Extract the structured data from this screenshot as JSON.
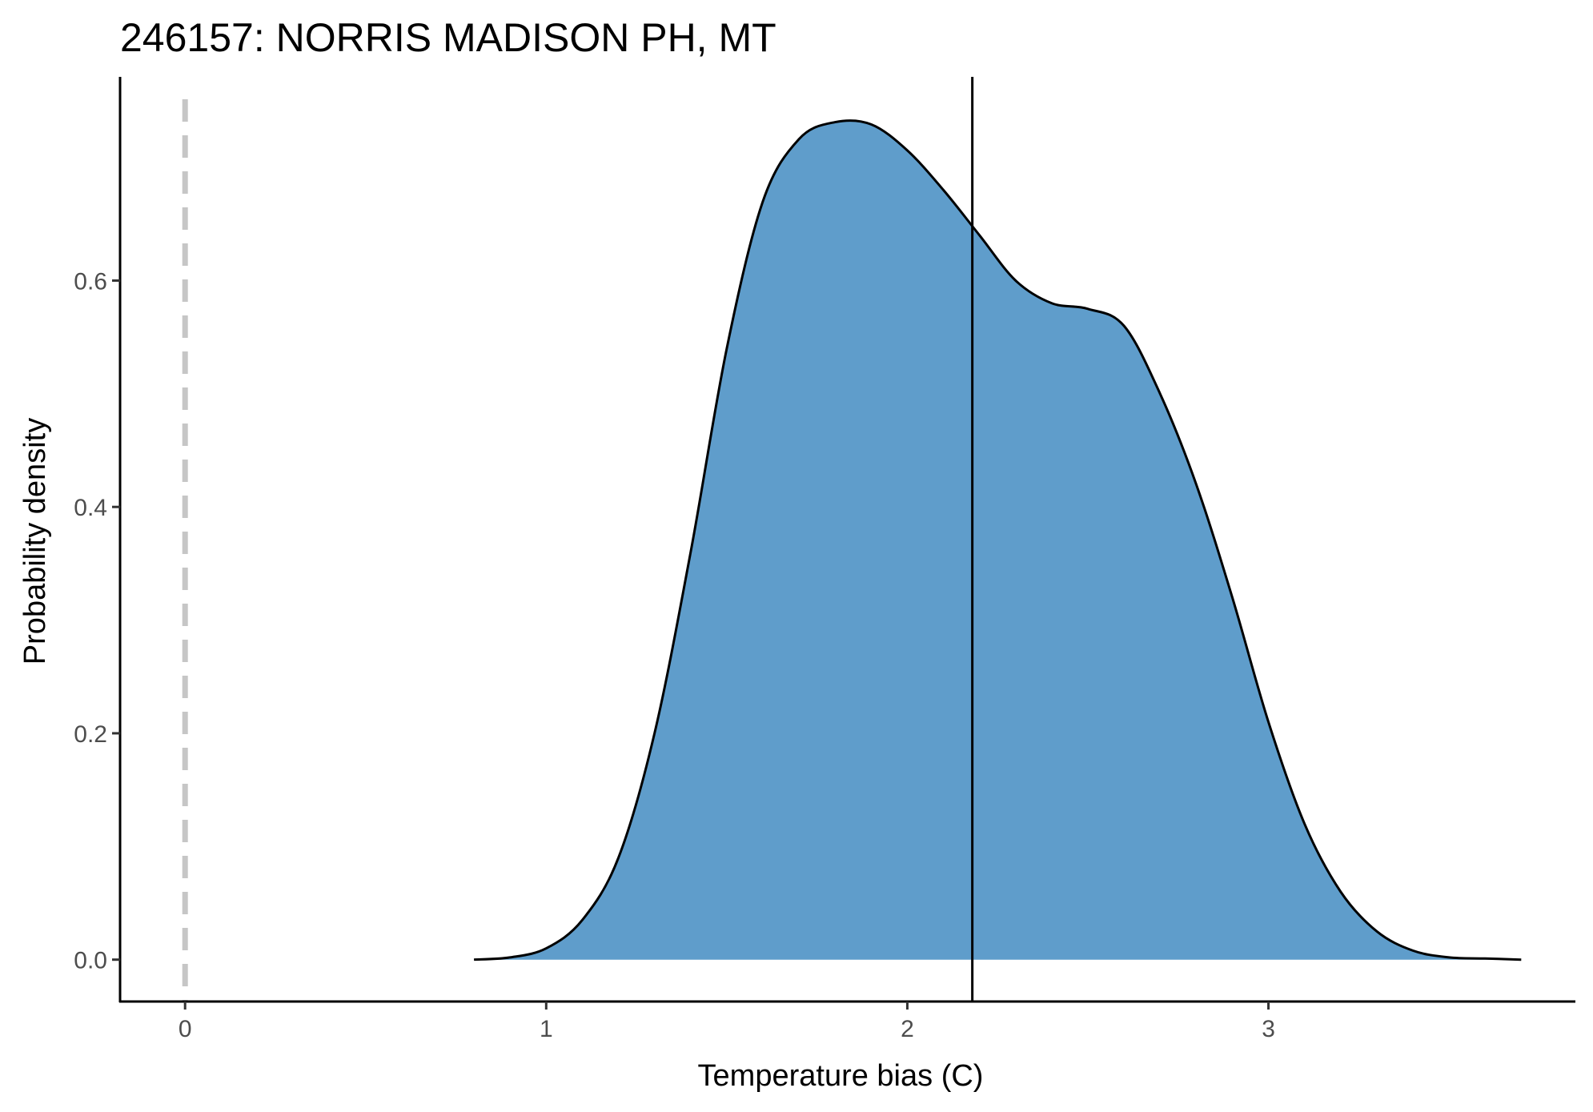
{
  "chart_data": {
    "type": "area",
    "title": "246157: NORRIS MADISON PH, MT",
    "xlabel": "Temperature bias (C)",
    "ylabel": "Probability density",
    "xlim": [
      -0.18,
      3.85
    ],
    "ylim": [
      -0.037,
      0.78
    ],
    "x_ticks": [
      0,
      1,
      2,
      3
    ],
    "x_tick_labels": [
      "0",
      "1",
      "2",
      "3"
    ],
    "y_ticks": [
      0.0,
      0.2,
      0.4,
      0.6
    ],
    "y_tick_labels": [
      "0.0",
      "0.2",
      "0.4",
      "0.6"
    ],
    "grid": false,
    "legend": "none",
    "reference_lines": {
      "zero_line_x": 0,
      "mean_line_x": 2.18
    },
    "series": [
      {
        "x": [
          0.8,
          0.9,
          1.0,
          1.1,
          1.2,
          1.3,
          1.4,
          1.5,
          1.6,
          1.7,
          1.8,
          1.9,
          2.0,
          2.1,
          2.2,
          2.3,
          2.4,
          2.5,
          2.6,
          2.7,
          2.8,
          2.9,
          3.0,
          3.1,
          3.2,
          3.3,
          3.4,
          3.5,
          3.6,
          3.7
        ],
        "y": [
          0.0,
          0.002,
          0.01,
          0.035,
          0.09,
          0.2,
          0.36,
          0.54,
          0.67,
          0.725,
          0.74,
          0.738,
          0.715,
          0.68,
          0.64,
          0.6,
          0.58,
          0.575,
          0.56,
          0.5,
          0.42,
          0.32,
          0.21,
          0.12,
          0.06,
          0.025,
          0.008,
          0.002,
          0.001,
          0.0
        ]
      }
    ]
  },
  "colors": {
    "fill": "#5f9dcb",
    "outline": "#000000",
    "zero_line": "#c6c6c6",
    "mean_line": "#000000",
    "axis": "#000000",
    "tick_label": "#4d4d4d"
  }
}
